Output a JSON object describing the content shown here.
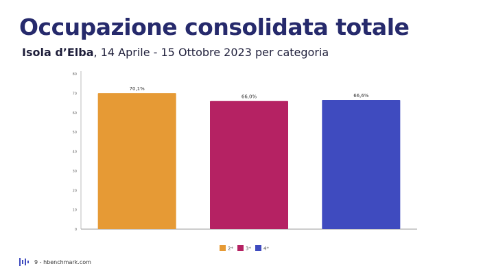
{
  "header": {
    "title": "Occupazione consolidata totale",
    "subtitle_bold": "Isola d’Elba",
    "subtitle_rest": ", 14 Aprile - 15 Ottobre 2023 per categoria"
  },
  "footer": {
    "text": "9 - hbenchmark.com",
    "logo_icon": "hbenchmark-logo-icon"
  },
  "chart_data": {
    "type": "bar",
    "categories": [
      "2*",
      "3*",
      "4*"
    ],
    "values": [
      70.1,
      66.0,
      66.6
    ],
    "data_labels": [
      "70,1%",
      "66,0%",
      "66,6%"
    ],
    "colors": [
      "#e69a35",
      "#b52263",
      "#3f4bbf"
    ],
    "ylim": [
      0,
      80
    ],
    "yticks": [
      "0",
      "10",
      "20",
      "30",
      "40",
      "50",
      "60",
      "70",
      "80"
    ],
    "grid": false,
    "legend_position": "bottom"
  }
}
